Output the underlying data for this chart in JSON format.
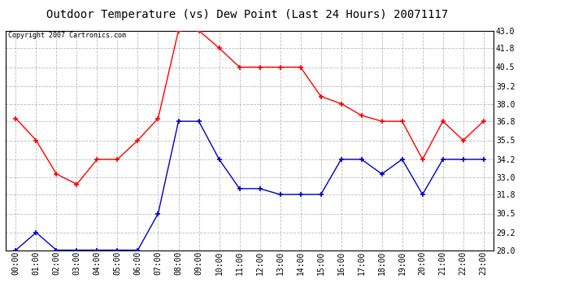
{
  "title": "Outdoor Temperature (vs) Dew Point (Last 24 Hours) 20071117",
  "copyright_text": "Copyright 2007 Cartronics.com",
  "x_labels": [
    "00:00",
    "01:00",
    "02:00",
    "03:00",
    "04:00",
    "05:00",
    "06:00",
    "07:00",
    "08:00",
    "09:00",
    "10:00",
    "11:00",
    "12:00",
    "13:00",
    "14:00",
    "15:00",
    "16:00",
    "17:00",
    "18:00",
    "19:00",
    "20:00",
    "21:00",
    "22:00",
    "23:00"
  ],
  "temp_red": [
    37.0,
    35.5,
    33.2,
    32.5,
    34.2,
    34.2,
    35.5,
    37.0,
    43.0,
    43.0,
    41.8,
    40.5,
    40.5,
    40.5,
    40.5,
    38.5,
    38.0,
    37.2,
    36.8,
    36.8,
    34.2,
    36.8,
    35.5,
    36.8
  ],
  "dew_blue": [
    28.0,
    29.2,
    28.0,
    28.0,
    28.0,
    28.0,
    28.0,
    30.5,
    36.8,
    36.8,
    34.2,
    32.2,
    32.2,
    31.8,
    31.8,
    31.8,
    34.2,
    34.2,
    33.2,
    34.2,
    31.8,
    34.2,
    34.2,
    34.2
  ],
  "ylim_min": 28.0,
  "ylim_max": 43.0,
  "yticks": [
    28.0,
    29.2,
    30.5,
    31.8,
    33.0,
    34.2,
    35.5,
    36.8,
    38.0,
    39.2,
    40.5,
    41.8,
    43.0
  ],
  "red_color": "#ff0000",
  "blue_color": "#0000cc",
  "bg_color": "#ffffff",
  "grid_color": "#bbbbbb",
  "title_fontsize": 10,
  "axis_fontsize": 7,
  "copyright_fontsize": 6
}
